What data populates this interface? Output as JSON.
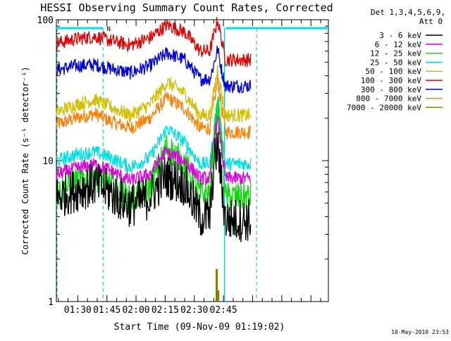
{
  "chart_data": {
    "type": "line",
    "title": "HESSI Observing Summary Count Rates, Corrected",
    "xlabel": "Start Time (09-Nov-09 01:19:02)",
    "ylabel": "Corrected Count Rate (s⁻¹ detector⁻¹)",
    "yscale": "log",
    "ylim": [
      1,
      100
    ],
    "yticks": [
      {
        "v": 1,
        "label": "1"
      },
      {
        "v": 10,
        "label": "10"
      },
      {
        "v": 100,
        "label": "100"
      }
    ],
    "xlim_min": [
      0,
      140
    ],
    "xticks": [
      {
        "t": 11,
        "label": "01:30"
      },
      {
        "t": 26,
        "label": "01:45"
      },
      {
        "t": 41,
        "label": "02:00"
      },
      {
        "t": 56,
        "label": "02:15"
      },
      {
        "t": 71,
        "label": "02:30"
      },
      {
        "t": 86,
        "label": "02:45"
      }
    ],
    "legend": {
      "placement": "top-right",
      "header": [
        "Det 1,3,4,5,6,9,",
        "Att 0"
      ]
    },
    "timestamp": "10-May-2010 23:53",
    "night_markers_min": [
      24,
      86.5,
      103
    ],
    "night_bar": {
      "start": 0,
      "end": 24,
      "label": "N"
    },
    "series": [
      {
        "name": "3 - 6 keV",
        "color": "#000000",
        "points": [
          [
            0,
            5.5
          ],
          [
            10,
            6.2
          ],
          [
            20,
            6.8
          ],
          [
            27,
            6
          ],
          [
            38,
            4.8
          ],
          [
            48,
            5.5
          ],
          [
            56,
            7.8
          ],
          [
            66,
            6.8
          ],
          [
            74,
            4
          ],
          [
            79,
            4
          ],
          [
            81,
            9
          ],
          [
            83,
            13
          ],
          [
            85,
            7
          ],
          [
            87,
            3.8
          ],
          [
            100,
            3.8
          ]
        ]
      },
      {
        "name": "6 - 12 keV",
        "color": "#e000e0",
        "points": [
          [
            0,
            8
          ],
          [
            10,
            8.8
          ],
          [
            20,
            9.4
          ],
          [
            28,
            8.5
          ],
          [
            38,
            7.2
          ],
          [
            48,
            8
          ],
          [
            56,
            11.5
          ],
          [
            66,
            10
          ],
          [
            74,
            7.5
          ],
          [
            79,
            7.5
          ],
          [
            81,
            14
          ],
          [
            83,
            20
          ],
          [
            85,
            12
          ],
          [
            87,
            7.5
          ],
          [
            100,
            7.5
          ]
        ]
      },
      {
        "name": "12 - 25 keV",
        "color": "#00e000",
        "points": [
          [
            0,
            5.8
          ],
          [
            10,
            7
          ],
          [
            20,
            7.8
          ],
          [
            28,
            6.8
          ],
          [
            38,
            5.2
          ],
          [
            48,
            6.5
          ],
          [
            57,
            12.5
          ],
          [
            66,
            9.5
          ],
          [
            74,
            5.8
          ],
          [
            79,
            5.8
          ],
          [
            81,
            14
          ],
          [
            83,
            24
          ],
          [
            85,
            14
          ],
          [
            87,
            5.5
          ],
          [
            100,
            5.5
          ]
        ]
      },
      {
        "name": "25 - 50 keV",
        "color": "#00e0e0",
        "points": [
          [
            0,
            10
          ],
          [
            10,
            11
          ],
          [
            20,
            11.5
          ],
          [
            28,
            10.5
          ],
          [
            38,
            9
          ],
          [
            48,
            10.5
          ],
          [
            57,
            17
          ],
          [
            66,
            13.5
          ],
          [
            74,
            9.5
          ],
          [
            79,
            9.5
          ],
          [
            81,
            16
          ],
          [
            83,
            28
          ],
          [
            85,
            16
          ],
          [
            87,
            9.5
          ],
          [
            100,
            9.5
          ]
        ]
      },
      {
        "name": "50 - 100 keV",
        "color": "#d0c000",
        "points": [
          [
            0,
            22
          ],
          [
            10,
            25
          ],
          [
            20,
            27
          ],
          [
            28,
            24
          ],
          [
            38,
            21
          ],
          [
            48,
            25
          ],
          [
            57,
            36
          ],
          [
            66,
            30
          ],
          [
            74,
            21
          ],
          [
            79,
            21
          ],
          [
            81,
            30
          ],
          [
            83,
            45
          ],
          [
            85,
            30
          ],
          [
            87,
            21
          ],
          [
            100,
            21
          ]
        ]
      },
      {
        "name": "100 - 300 keV",
        "color": "#e00000",
        "points": [
          [
            0,
            68
          ],
          [
            10,
            73
          ],
          [
            20,
            76
          ],
          [
            28,
            71
          ],
          [
            38,
            66
          ],
          [
            48,
            74
          ],
          [
            57,
            92
          ],
          [
            66,
            82
          ],
          [
            74,
            60
          ],
          [
            79,
            60
          ],
          [
            81,
            78
          ],
          [
            83,
            100
          ],
          [
            85,
            72
          ],
          [
            87,
            52
          ],
          [
            100,
            52
          ]
        ]
      },
      {
        "name": "300 - 800 keV",
        "color": "#0000e0",
        "points": [
          [
            0,
            44
          ],
          [
            10,
            47
          ],
          [
            20,
            48
          ],
          [
            28,
            45
          ],
          [
            38,
            42
          ],
          [
            48,
            47
          ],
          [
            57,
            58
          ],
          [
            66,
            52
          ],
          [
            74,
            38
          ],
          [
            79,
            38
          ],
          [
            81,
            48
          ],
          [
            83,
            62
          ],
          [
            85,
            44
          ],
          [
            87,
            34
          ],
          [
            100,
            34
          ]
        ]
      },
      {
        "name": "800 - 7000 keV",
        "color": "#ff8000",
        "points": [
          [
            0,
            18
          ],
          [
            10,
            20
          ],
          [
            20,
            21.5
          ],
          [
            28,
            19
          ],
          [
            38,
            17
          ],
          [
            48,
            20
          ],
          [
            57,
            28
          ],
          [
            66,
            23.5
          ],
          [
            74,
            17
          ],
          [
            79,
            17
          ],
          [
            81,
            25
          ],
          [
            83,
            38
          ],
          [
            85,
            24
          ],
          [
            87,
            16
          ],
          [
            100,
            16
          ]
        ]
      },
      {
        "name": "7000 - 20000 keV",
        "color": "#808000",
        "points": [
          [
            82.5,
            1.7
          ],
          [
            83.3,
            1.2
          ],
          [
            84,
            1
          ]
        ]
      }
    ]
  }
}
